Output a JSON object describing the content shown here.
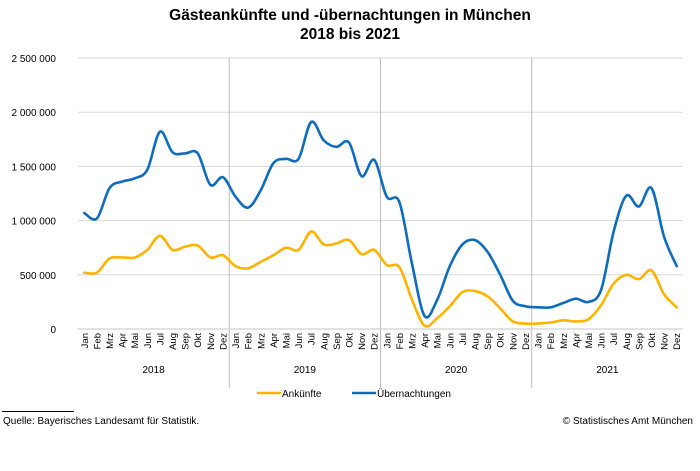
{
  "chart_data": {
    "type": "line",
    "title": "Gästeankünfte und -übernachtungen in München",
    "subtitle": "2018 bis 2021",
    "xlabel": "",
    "ylabel": "",
    "ylim": [
      0,
      2500000
    ],
    "yticks": [
      0,
      500000,
      1000000,
      1500000,
      2000000,
      2500000
    ],
    "ytick_labels": [
      "0",
      "500 000",
      "1 000 000",
      "1 500 000",
      "2 000 000",
      "2 500 000"
    ],
    "grid": true,
    "legend_position": "bottom",
    "months": [
      "Jan",
      "Feb",
      "Mrz",
      "Apr",
      "Mai",
      "Jun",
      "Jul",
      "Aug",
      "Sep",
      "Okt",
      "Nov",
      "Dez"
    ],
    "years": [
      "2018",
      "2019",
      "2020",
      "2021"
    ],
    "series": [
      {
        "name": "Ankünfte",
        "color": "#FFB300",
        "values": [
          520000,
          520000,
          650000,
          660000,
          660000,
          730000,
          860000,
          730000,
          760000,
          770000,
          660000,
          680000,
          580000,
          560000,
          620000,
          680000,
          750000,
          730000,
          900000,
          780000,
          790000,
          820000,
          690000,
          730000,
          590000,
          570000,
          270000,
          30000,
          100000,
          210000,
          340000,
          350000,
          300000,
          190000,
          70000,
          50000,
          50000,
          60000,
          80000,
          70000,
          90000,
          220000,
          420000,
          500000,
          460000,
          540000,
          320000,
          200000
        ]
      },
      {
        "name": "Übernachtungen",
        "color": "#0F6CBD",
        "values": [
          1070000,
          1020000,
          1300000,
          1360000,
          1390000,
          1470000,
          1820000,
          1630000,
          1620000,
          1620000,
          1330000,
          1400000,
          1220000,
          1120000,
          1280000,
          1530000,
          1570000,
          1570000,
          1910000,
          1740000,
          1680000,
          1720000,
          1410000,
          1560000,
          1220000,
          1170000,
          600000,
          120000,
          270000,
          580000,
          780000,
          820000,
          710000,
          500000,
          260000,
          210000,
          200000,
          200000,
          240000,
          280000,
          250000,
          360000,
          900000,
          1230000,
          1130000,
          1300000,
          850000,
          580000
        ]
      }
    ]
  },
  "footer": {
    "source": "Quelle: Bayerisches Landesamt für Statistik.",
    "copyright": "© Statistisches Amt München"
  },
  "colors": {
    "gridline": "#D9D9D9",
    "year_divider": "#BFBFBF",
    "axis_text": "#000000"
  }
}
